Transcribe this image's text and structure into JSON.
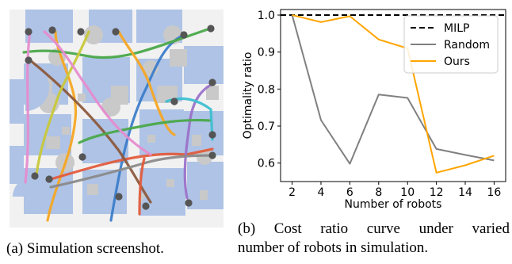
{
  "captions": {
    "a": "(a) Simulation screenshot.",
    "b_line1": "(b) Cost ratio curve under varied",
    "b_line2": "number of robots in simulation."
  },
  "simulation": {
    "colors": {
      "floor": "#f1f1f1",
      "zone": "#aec3e6",
      "obstacle": "#c9c9c9",
      "robot": "#555555"
    },
    "path_colors": [
      "#3d7dc9",
      "#f5a623",
      "#4aa84a",
      "#e25c3c",
      "#9b72c9",
      "#8c5a3c",
      "#e58ccf",
      "#8a8a8a",
      "#c8c83a",
      "#3cbfd0"
    ]
  },
  "chart_data": {
    "type": "line",
    "x": [
      2,
      4,
      6,
      8,
      10,
      12,
      14,
      16
    ],
    "xticks": [
      2,
      4,
      6,
      8,
      10,
      12,
      14,
      16
    ],
    "yticks": [
      0.6,
      0.7,
      0.8,
      0.9,
      1.0
    ],
    "xlim": [
      1.2,
      16.8
    ],
    "ylim": [
      0.55,
      1.015
    ],
    "xlabel": "Number of robots",
    "ylabel": "Optimality ratio",
    "legend_position": "upper-right",
    "series": [
      {
        "name": "MILP",
        "style": "dashed",
        "color": "#000000",
        "values": [
          1.0,
          1.0,
          1.0,
          1.0,
          1.0,
          1.0,
          1.0,
          1.0
        ]
      },
      {
        "name": "Random",
        "style": "solid",
        "color": "#808080",
        "values": [
          1.0,
          0.716,
          0.598,
          0.785,
          0.776,
          0.638,
          0.622,
          0.607
        ]
      },
      {
        "name": "Ours",
        "style": "solid",
        "color": "#ffa500",
        "values": [
          1.0,
          0.981,
          0.997,
          0.934,
          0.91,
          0.574,
          0.594,
          0.62
        ]
      }
    ]
  }
}
